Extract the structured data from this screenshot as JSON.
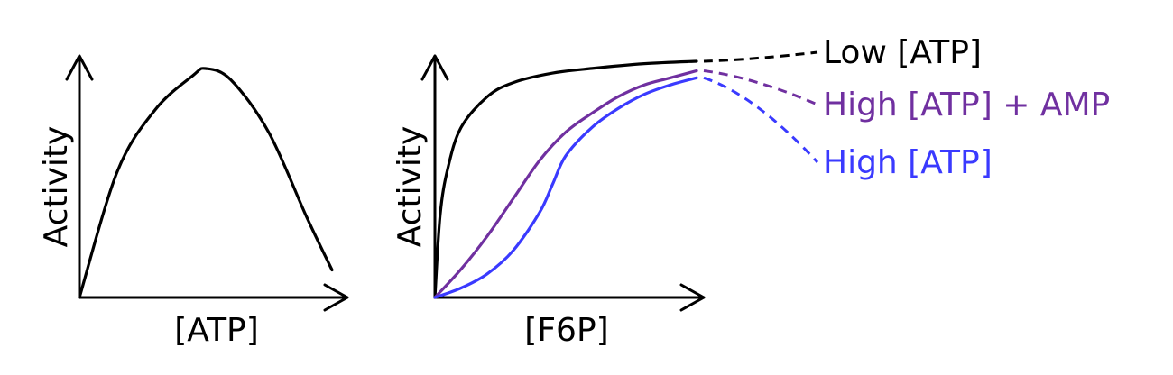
{
  "chart_data": [
    {
      "type": "line",
      "xlabel": "[ATP]",
      "ylabel": "Activity",
      "series": [
        {
          "color": "#000000",
          "x": [
            0,
            0.15,
            0.3,
            0.45,
            0.5,
            0.6,
            0.75,
            0.9,
            1.0
          ],
          "values": [
            0,
            0.55,
            0.82,
            0.97,
            1.0,
            0.95,
            0.72,
            0.35,
            0.12
          ]
        }
      ]
    },
    {
      "type": "line",
      "xlabel": "[F6P]",
      "ylabel": "Activity",
      "legend": "right",
      "series": [
        {
          "name": "Low [ATP]",
          "color": "#000000",
          "x": [
            0,
            0.02,
            0.05,
            0.1,
            0.2,
            0.3,
            0.45,
            0.6,
            0.8,
            1.0
          ],
          "values": [
            0,
            0.35,
            0.55,
            0.72,
            0.85,
            0.91,
            0.95,
            0.97,
            0.99,
            1.0
          ]
        },
        {
          "name": "High [ATP] + AMP",
          "color": "#7030a0",
          "x": [
            0,
            0.1,
            0.2,
            0.3,
            0.4,
            0.5,
            0.6,
            0.7,
            0.8,
            0.9,
            1.0
          ],
          "values": [
            0,
            0.12,
            0.26,
            0.42,
            0.58,
            0.7,
            0.78,
            0.85,
            0.9,
            0.93,
            0.96
          ]
        },
        {
          "name": "High [ATP]",
          "color": "#3a3aff",
          "x": [
            0,
            0.1,
            0.2,
            0.3,
            0.4,
            0.45,
            0.5,
            0.6,
            0.7,
            0.8,
            0.9,
            1.0
          ],
          "values": [
            0,
            0.04,
            0.1,
            0.2,
            0.36,
            0.48,
            0.6,
            0.72,
            0.8,
            0.86,
            0.9,
            0.93
          ]
        }
      ]
    }
  ]
}
